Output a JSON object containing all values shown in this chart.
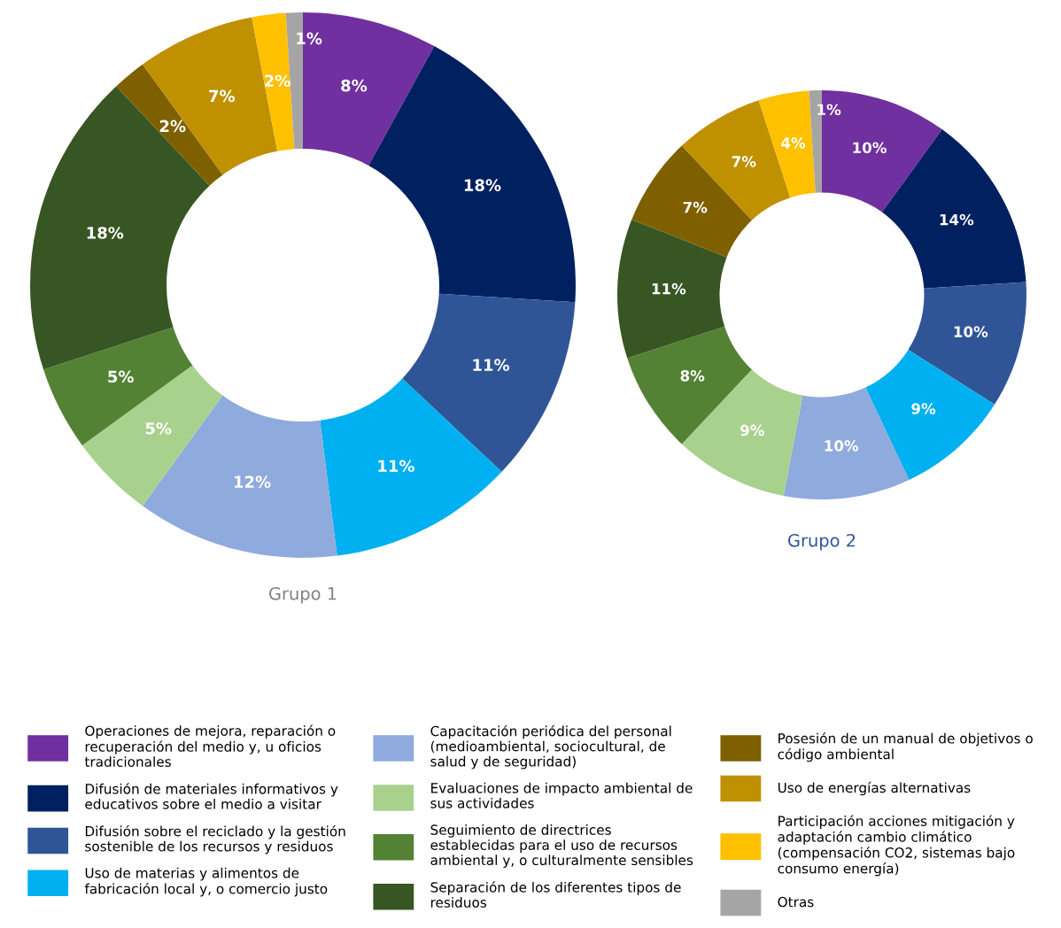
{
  "chart_data": [
    {
      "type": "donut",
      "title": "Grupo 1",
      "legend": "bottom",
      "categories": [
        "Operaciones de mejora, reparación o recuperación del medio y, u oficios tradicionales",
        "Difusión de materiales informativos y educativos sobre el medio a visitar",
        "Difusión sobre el reciclado y la gestión sostenible de los recursos y residuos",
        "Uso de materias y alimentos de fabricación local y, o comercio justo",
        "Capacitación periódica del personal (medioambiental, sociocultural, de salud y de seguridad)",
        "Evaluaciones de impacto ambiental de sus actividades",
        "Seguimiento de directrices establecidas para el uso de recursos ambiental y, o culturalmente sensibles",
        "Separación de los diferentes tipos de residuos",
        "Posesión de un manual de objetivos o código ambiental",
        "Uso de energías alternativas",
        "Participación acciones mitigación y adaptación cambio climático (compensación CO2, sistemas bajo consumo energía)",
        "Otras"
      ],
      "values": [
        8,
        18,
        11,
        11,
        12,
        5,
        5,
        18,
        2,
        7,
        2,
        1
      ],
      "value_labels": [
        "8%",
        "18%",
        "11%",
        "11%",
        "12%",
        "5%",
        "5%",
        "18%",
        "2%",
        "7%",
        "2%",
        "1%"
      ],
      "colors": [
        "#7030a0",
        "#002060",
        "#2f5597",
        "#00b0f0",
        "#8faadc",
        "#a9d18e",
        "#548235",
        "#375623",
        "#7f6000",
        "#bf9000",
        "#ffc000",
        "#a5a5a5"
      ]
    },
    {
      "type": "donut",
      "title": "Grupo 2",
      "values": [
        10,
        14,
        10,
        9,
        10,
        9,
        8,
        11,
        7,
        7,
        4,
        1
      ],
      "value_labels": [
        "10%",
        "14%",
        "10%",
        "9%",
        "10%",
        "9%",
        "8%",
        "11%",
        "7%",
        "7%",
        "4%",
        "1%"
      ],
      "colors": [
        "#7030a0",
        "#002060",
        "#2f5597",
        "#00b0f0",
        "#8faadc",
        "#a9d18e",
        "#548235",
        "#375623",
        "#7f6000",
        "#bf9000",
        "#ffc000",
        "#a5a5a5"
      ]
    }
  ]
}
